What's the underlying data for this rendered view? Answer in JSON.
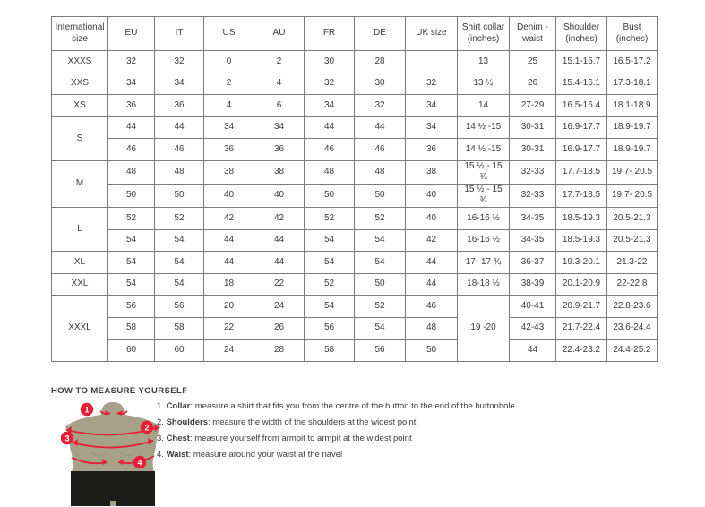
{
  "table": {
    "headers": [
      "International size",
      "EU",
      "IT",
      "US",
      "AU",
      "FR",
      "DE",
      "UK size",
      "Shirt collar (inches)",
      "Denim - waist",
      "Shoulder (inches)",
      "Bust (inches)"
    ],
    "rows": [
      [
        {
          "t": "XXXS"
        },
        {
          "t": "32"
        },
        {
          "t": "32"
        },
        {
          "t": "0"
        },
        {
          "t": "2"
        },
        {
          "t": "30"
        },
        {
          "t": "28"
        },
        {
          "t": ""
        },
        {
          "t": "13"
        },
        {
          "t": "25"
        },
        {
          "t": "15.1-15.7"
        },
        {
          "t": "16.5-17.2"
        }
      ],
      [
        {
          "t": "XXS"
        },
        {
          "t": "34"
        },
        {
          "t": "34"
        },
        {
          "t": "2"
        },
        {
          "t": "4"
        },
        {
          "t": "32"
        },
        {
          "t": "30"
        },
        {
          "t": "32"
        },
        {
          "t": "13 ½"
        },
        {
          "t": "26"
        },
        {
          "t": "15.4-16.1"
        },
        {
          "t": "17.3-18.1"
        }
      ],
      [
        {
          "t": "XS"
        },
        {
          "t": "36"
        },
        {
          "t": "36"
        },
        {
          "t": "4"
        },
        {
          "t": "6"
        },
        {
          "t": "34"
        },
        {
          "t": "32"
        },
        {
          "t": "34"
        },
        {
          "t": "14"
        },
        {
          "t": "27-29"
        },
        {
          "t": "16.5-16.4"
        },
        {
          "t": "18.1-18.9"
        }
      ],
      [
        {
          "t": "S",
          "rs": 2
        },
        {
          "t": "44"
        },
        {
          "t": "44"
        },
        {
          "t": "34"
        },
        {
          "t": "34"
        },
        {
          "t": "44"
        },
        {
          "t": "44"
        },
        {
          "t": "34"
        },
        {
          "t": "14 ½ -15"
        },
        {
          "t": "30-31"
        },
        {
          "t": "16.9-17.7"
        },
        {
          "t": "18.9-19.7"
        }
      ],
      [
        {
          "t": "46"
        },
        {
          "t": "46"
        },
        {
          "t": "36"
        },
        {
          "t": "36"
        },
        {
          "t": "46"
        },
        {
          "t": "46"
        },
        {
          "t": "36"
        },
        {
          "t": "14 ½ -15"
        },
        {
          "t": "30-31"
        },
        {
          "t": "16.9-17.7"
        },
        {
          "t": "18.9-19.7"
        }
      ],
      [
        {
          "t": "M",
          "rs": 2
        },
        {
          "t": "48"
        },
        {
          "t": "48"
        },
        {
          "t": "38"
        },
        {
          "t": "38"
        },
        {
          "t": "48"
        },
        {
          "t": "48"
        },
        {
          "t": "38"
        },
        {
          "t": "15 ½ - 15 ¾"
        },
        {
          "t": "32-33"
        },
        {
          "t": "17.7-18.5"
        },
        {
          "t": "19.7- 20.5"
        }
      ],
      [
        {
          "t": "50"
        },
        {
          "t": "50"
        },
        {
          "t": "40"
        },
        {
          "t": "40"
        },
        {
          "t": "50"
        },
        {
          "t": "50"
        },
        {
          "t": "40"
        },
        {
          "t": "15 ½ - 15 ¾"
        },
        {
          "t": "32-33"
        },
        {
          "t": "17.7-18.5"
        },
        {
          "t": "19.7- 20.5"
        }
      ],
      [
        {
          "t": "L",
          "rs": 2
        },
        {
          "t": "52"
        },
        {
          "t": "52"
        },
        {
          "t": "42"
        },
        {
          "t": "42"
        },
        {
          "t": "52"
        },
        {
          "t": "52"
        },
        {
          "t": "40"
        },
        {
          "t": "16-16 ½"
        },
        {
          "t": "34-35"
        },
        {
          "t": "18.5-19.3"
        },
        {
          "t": "20.5-21.3"
        }
      ],
      [
        {
          "t": "54"
        },
        {
          "t": "54"
        },
        {
          "t": "44"
        },
        {
          "t": "44"
        },
        {
          "t": "54"
        },
        {
          "t": "54"
        },
        {
          "t": "42"
        },
        {
          "t": "16-16 ½"
        },
        {
          "t": "34-35"
        },
        {
          "t": "18.5-19.3"
        },
        {
          "t": "20.5-21.3"
        }
      ],
      [
        {
          "t": "XL"
        },
        {
          "t": "54"
        },
        {
          "t": "54"
        },
        {
          "t": "44"
        },
        {
          "t": "44"
        },
        {
          "t": "54"
        },
        {
          "t": "54"
        },
        {
          "t": "44"
        },
        {
          "t": "17- 17 ¾"
        },
        {
          "t": "36-37"
        },
        {
          "t": "19.3-20.1"
        },
        {
          "t": "21.3-22"
        }
      ],
      [
        {
          "t": "XXL"
        },
        {
          "t": "54"
        },
        {
          "t": "54"
        },
        {
          "t": "18"
        },
        {
          "t": "22"
        },
        {
          "t": "52"
        },
        {
          "t": "50"
        },
        {
          "t": "44"
        },
        {
          "t": "18-18 ½"
        },
        {
          "t": "38-39"
        },
        {
          "t": "20.1-20.9"
        },
        {
          "t": "22-22.8"
        }
      ],
      [
        {
          "t": "XXXL",
          "rs": 3
        },
        {
          "t": "56"
        },
        {
          "t": "56"
        },
        {
          "t": "20"
        },
        {
          "t": "24"
        },
        {
          "t": "54"
        },
        {
          "t": "52"
        },
        {
          "t": "46"
        },
        {
          "t": "19 -20",
          "rs": 3
        },
        {
          "t": "40-41"
        },
        {
          "t": "20.9-21.7"
        },
        {
          "t": "22.8-23.6"
        }
      ],
      [
        {
          "t": "58"
        },
        {
          "t": "58"
        },
        {
          "t": "22"
        },
        {
          "t": "26"
        },
        {
          "t": "56"
        },
        {
          "t": "54"
        },
        {
          "t": "48"
        },
        {
          "t": "42-43"
        },
        {
          "t": "21.7-22.4"
        },
        {
          "t": "23.6-24.4"
        }
      ],
      [
        {
          "t": "60"
        },
        {
          "t": "60"
        },
        {
          "t": "24"
        },
        {
          "t": "28"
        },
        {
          "t": "58"
        },
        {
          "t": "56"
        },
        {
          "t": "50"
        },
        {
          "t": "44"
        },
        {
          "t": "22.4-23.2"
        },
        {
          "t": "24.4-25.2"
        }
      ]
    ]
  },
  "measure": {
    "title": "HOW TO MEASURE YOURSELF",
    "steps": [
      {
        "num": "1.",
        "label": "Collar",
        "rest": ": measure a shirt that fits you from the centre of the button to the end of the buttonhole"
      },
      {
        "num": "2.",
        "label": "Shoulders",
        "rest": ": measure the width of the shoulders at the widest point"
      },
      {
        "num": "3.",
        "label": "Chest",
        "rest": ": measure yourself from armpit to armpit at the widest point"
      },
      {
        "num": "4.",
        "label": "Waist",
        "rest": ": measure around your waist at the navel"
      }
    ],
    "figure_badges": [
      "1",
      "2",
      "3",
      "4"
    ]
  },
  "colors": {
    "accent_red": "#e41e36",
    "mannequin_body": "#a8a18a",
    "mannequin_shorts": "#1c1c1a",
    "table_border": "#7b7b7b",
    "text": "#3c3c3b"
  }
}
